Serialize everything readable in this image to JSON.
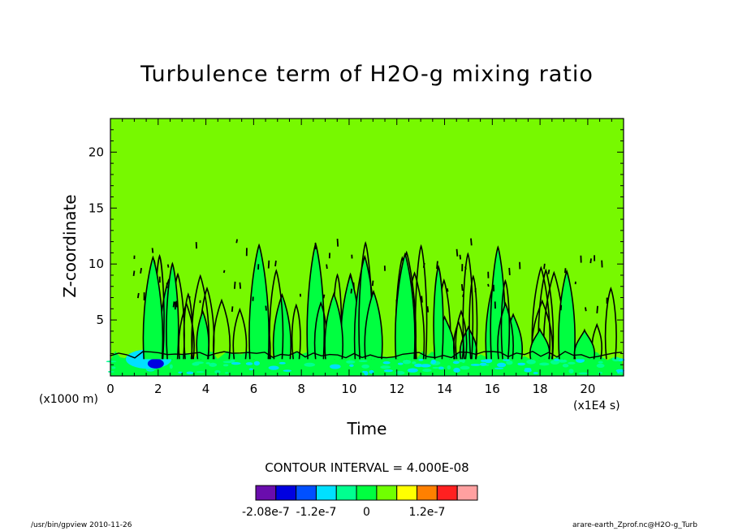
{
  "chart_data": {
    "type": "heatmap",
    "title": "Turbulence term of H2O-g mixing ratio",
    "xlabel": "Time",
    "ylabel": "Z-coordinate",
    "x_unit_note": "(x1E4 s)",
    "y_unit_note": "(x1000 m)",
    "xlim": [
      0,
      21.5
    ],
    "ylim": [
      0,
      23
    ],
    "x_ticks": [
      0,
      2,
      4,
      6,
      8,
      10,
      12,
      14,
      16,
      18,
      20
    ],
    "y_ticks": [
      5,
      10,
      15,
      20
    ],
    "contour_interval_label": "CONTOUR INTERVAL = 4.000E-08",
    "colorbar": {
      "colors": [
        "#6a0dad",
        "#0000e0",
        "#0050ff",
        "#00e0ff",
        "#00ff90",
        "#00ff40",
        "#70ff00",
        "#ffff00",
        "#ff8000",
        "#ff2020",
        "#ffa0a0"
      ],
      "tick_labels": [
        "-2.08e-7",
        "-1.2e-7",
        "0",
        "1.2e-7"
      ]
    },
    "background_color": "#77f900",
    "contour_line_color": "#000000"
  },
  "footer": {
    "left": "/usr/bin/gpview  2010-11-26",
    "right": "arare-earth_Zprof.nc@H2O-g_Turb"
  }
}
